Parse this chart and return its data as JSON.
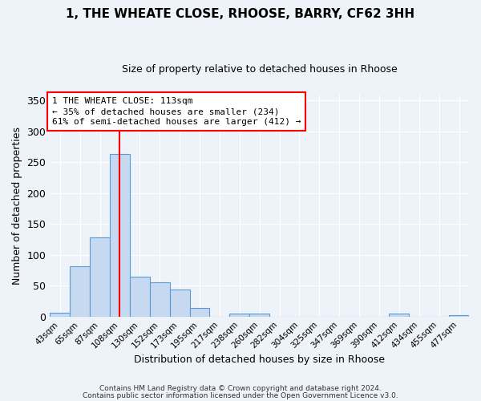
{
  "title": "1, THE WHEATE CLOSE, RHOOSE, BARRY, CF62 3HH",
  "subtitle": "Size of property relative to detached houses in Rhoose",
  "xlabel": "Distribution of detached houses by size in Rhoose",
  "ylabel": "Number of detached properties",
  "bin_labels": [
    "43sqm",
    "65sqm",
    "87sqm",
    "108sqm",
    "130sqm",
    "152sqm",
    "173sqm",
    "195sqm",
    "217sqm",
    "238sqm",
    "260sqm",
    "282sqm",
    "304sqm",
    "325sqm",
    "347sqm",
    "369sqm",
    "390sqm",
    "412sqm",
    "434sqm",
    "455sqm",
    "477sqm"
  ],
  "bar_heights": [
    6,
    81,
    128,
    263,
    65,
    56,
    44,
    14,
    0,
    5,
    5,
    0,
    0,
    0,
    0,
    0,
    0,
    5,
    0,
    0,
    2
  ],
  "bar_color": "#c6d9f0",
  "bar_edge_color": "#5b9bd5",
  "vline_x_index": 3,
  "vline_color": "red",
  "annotation_title": "1 THE WHEATE CLOSE: 113sqm",
  "annotation_line1": "← 35% of detached houses are smaller (234)",
  "annotation_line2": "61% of semi-detached houses are larger (412) →",
  "annotation_box_edgecolor": "red",
  "annotation_box_facecolor": "white",
  "ylim": [
    0,
    360
  ],
  "yticks": [
    0,
    50,
    100,
    150,
    200,
    250,
    300,
    350
  ],
  "footer1": "Contains HM Land Registry data © Crown copyright and database right 2024.",
  "footer2": "Contains public sector information licensed under the Open Government Licence v3.0.",
  "bg_color": "#eef2f9",
  "grid_color": "#ffffff",
  "title_fontsize": 11,
  "subtitle_fontsize": 9
}
